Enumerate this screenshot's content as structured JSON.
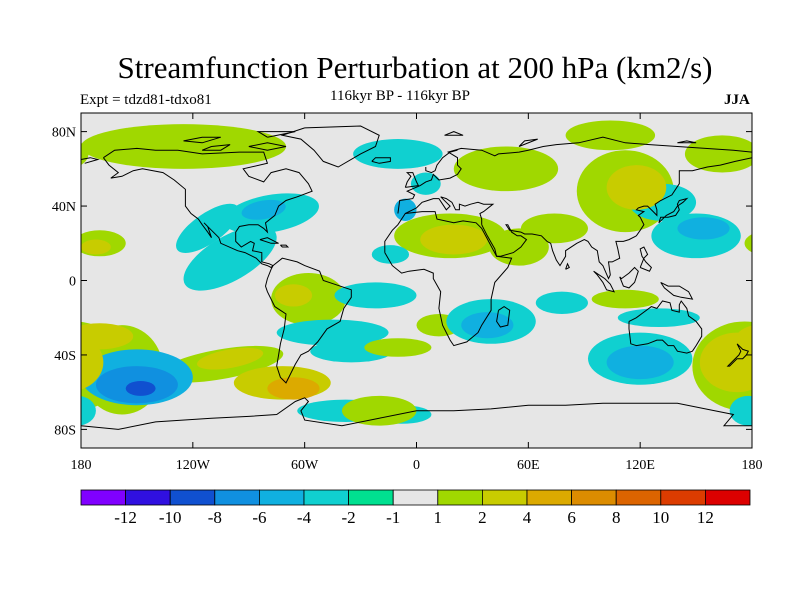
{
  "title": "Streamfunction Perturbation at 200 hPa (km2/s)",
  "subtitle_left": "Expt = tdzd81-tdxo81",
  "subtitle_center": "116kyr BP - 116kyr BP",
  "subtitle_right": "JJA",
  "map": {
    "lon_range": [
      -180,
      180
    ],
    "lat_range": [
      -90,
      90
    ],
    "x_ticks": [
      {
        "value": -180,
        "label": "180"
      },
      {
        "value": -120,
        "label": "120W"
      },
      {
        "value": -60,
        "label": "60W"
      },
      {
        "value": 0,
        "label": "0"
      },
      {
        "value": 60,
        "label": "60E"
      },
      {
        "value": 120,
        "label": "120E"
      },
      {
        "value": 180,
        "label": "180"
      }
    ],
    "y_ticks": [
      {
        "value": 80,
        "label": "80N"
      },
      {
        "value": 40,
        "label": "40N"
      },
      {
        "value": 0,
        "label": "0"
      },
      {
        "value": -40,
        "label": "40S"
      },
      {
        "value": -80,
        "label": "80S"
      }
    ],
    "background_color": "#e6e6e6"
  },
  "colorbar": {
    "colors": [
      "#8000ff",
      "#3010e0",
      "#1050d0",
      "#1090e0",
      "#10b0e0",
      "#10d0d0",
      "#00e090",
      "#e6e6e6",
      "#a0d800",
      "#c8cc00",
      "#dcaa00",
      "#dc8c00",
      "#dc6400",
      "#dc3c00",
      "#dc0000"
    ],
    "labels": [
      "-12",
      "-10",
      "-8",
      "-6",
      "-4",
      "-2",
      "-1",
      "1",
      "2",
      "4",
      "6",
      "8",
      "10",
      "12"
    ]
  },
  "chart_data": {
    "type": "heatmap",
    "title": "Streamfunction Perturbation at 200 hPa (km2/s)",
    "projection": "cylindrical equidistant",
    "contour_levels": [
      -12,
      -10,
      -8,
      -6,
      -4,
      -2,
      -1,
      1,
      2,
      4,
      6,
      8,
      10,
      12
    ],
    "x_range": [
      -180,
      180
    ],
    "y_range": [
      -90,
      90
    ],
    "regions": [
      {
        "lon": -125,
        "lat": 72,
        "value": 2
      },
      {
        "lon": -100,
        "lat": 10,
        "value": -2
      },
      {
        "lon": -80,
        "lat": 38,
        "value": -4
      },
      {
        "lon": -60,
        "lat": -5,
        "value": 2
      },
      {
        "lon": -65,
        "lat": -8,
        "value": 4
      },
      {
        "lon": -155,
        "lat": -55,
        "value": -6
      },
      {
        "lon": -148,
        "lat": -58,
        "value": -8
      },
      {
        "lon": -165,
        "lat": 22,
        "value": 4
      },
      {
        "lon": -120,
        "lat": -25,
        "value": 4
      },
      {
        "lon": -70,
        "lat": -55,
        "value": 6
      },
      {
        "lon": -10,
        "lat": 70,
        "value": -2
      },
      {
        "lon": 18,
        "lat": 25,
        "value": 4
      },
      {
        "lon": 38,
        "lat": -25,
        "value": -4
      },
      {
        "lon": 150,
        "lat": 25,
        "value": -4
      },
      {
        "lon": 155,
        "lat": 33,
        "value": -6
      },
      {
        "lon": 118,
        "lat": 50,
        "value": 4
      },
      {
        "lon": 145,
        "lat": -45,
        "value": -4
      },
      {
        "lon": 175,
        "lat": -45,
        "value": 4
      },
      {
        "lon": 60,
        "lat": 60,
        "value": 2
      }
    ]
  }
}
